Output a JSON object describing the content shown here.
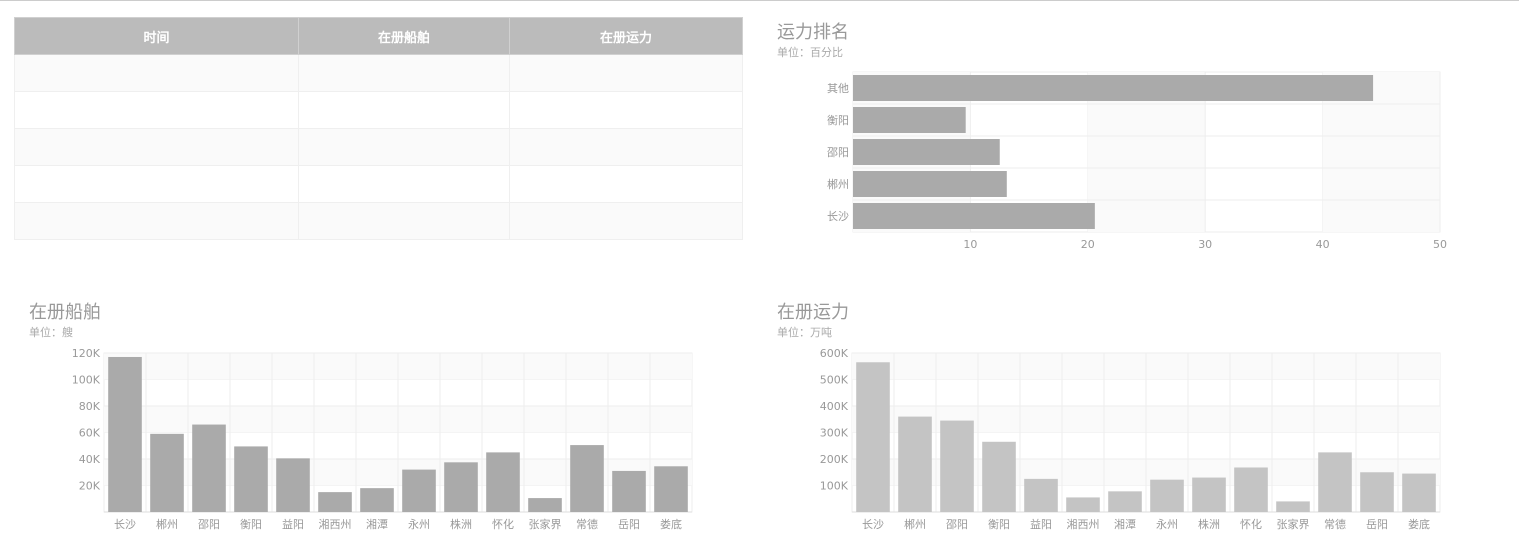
{
  "table": {
    "headers": [
      "时间",
      "在册船舶",
      "在册运力"
    ],
    "row_count": 5
  },
  "chart_data": [
    {
      "id": "ranking",
      "type": "bar",
      "orientation": "horizontal",
      "title": "运力排名",
      "subtitle": "单位：百分比",
      "categories": [
        "其他",
        "衡阳",
        "邵阳",
        "郴州",
        "长沙"
      ],
      "values": [
        44.3,
        9.6,
        12.5,
        13.1,
        20.6
      ],
      "xlim": [
        0,
        50
      ],
      "xticks": [
        10,
        20,
        30,
        40,
        50
      ],
      "bar_color": "#aaaaaa",
      "grid": true
    },
    {
      "id": "ships",
      "type": "bar",
      "title": "在册船舶",
      "subtitle": "单位：艘",
      "categories": [
        "长沙",
        "郴州",
        "邵阳",
        "衡阳",
        "益阳",
        "湘西州",
        "湘潭",
        "永州",
        "株洲",
        "怀化",
        "张家界",
        "常德",
        "岳阳",
        "娄底"
      ],
      "values": [
        117000,
        59000,
        66000,
        49500,
        40500,
        15000,
        18000,
        32000,
        37500,
        45000,
        10500,
        50500,
        31000,
        34500
      ],
      "ylim": [
        0,
        120000
      ],
      "yticks": [
        20000,
        40000,
        60000,
        80000,
        100000,
        120000
      ],
      "yticklabels": [
        "20K",
        "40K",
        "60K",
        "80K",
        "100K",
        "120K"
      ],
      "bar_color": "#aaaaaa",
      "grid": true
    },
    {
      "id": "capacity",
      "type": "bar",
      "title": "在册运力",
      "subtitle": "单位：万吨",
      "categories": [
        "长沙",
        "郴州",
        "邵阳",
        "衡阳",
        "益阳",
        "湘西州",
        "湘潭",
        "永州",
        "株洲",
        "怀化",
        "张家界",
        "常德",
        "岳阳",
        "娄底"
      ],
      "values": [
        565000,
        360000,
        345000,
        265000,
        125000,
        55000,
        78000,
        122000,
        130000,
        168000,
        40000,
        225000,
        150000,
        145000
      ],
      "ylim": [
        0,
        600000
      ],
      "yticks": [
        100000,
        200000,
        300000,
        400000,
        500000,
        600000
      ],
      "yticklabels": [
        "100K",
        "200K",
        "300K",
        "400K",
        "500K",
        "600K"
      ],
      "bar_color": "#c4c4c4",
      "grid": true
    }
  ]
}
